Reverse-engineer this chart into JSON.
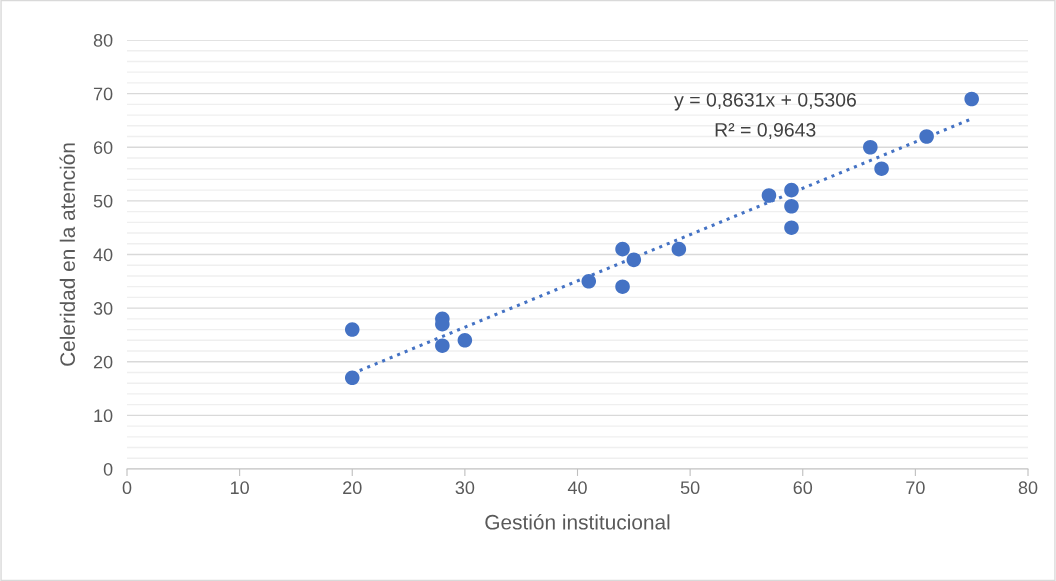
{
  "chart_data": {
    "type": "scatter",
    "xlabel": "Gestión institucional",
    "ylabel": "Celeridad en la atención",
    "series": [
      {
        "color": "#4472c4",
        "marker": "circle",
        "x": [
          20,
          20,
          28,
          28,
          28,
          30,
          41,
          44,
          44,
          45,
          49,
          57,
          59,
          59,
          59,
          66,
          67,
          71,
          75
        ],
        "values": [
          26,
          17,
          28,
          27,
          23,
          24,
          35,
          41,
          34,
          39,
          41,
          51,
          52,
          49,
          45,
          60,
          56,
          62,
          69
        ]
      },
      {
        "type": "line",
        "color": "#4472c4",
        "marker": "none",
        "line_style": "dotted",
        "x": [
          20,
          75
        ],
        "values": [
          17.8,
          65.3
        ]
      }
    ],
    "annotations": [
      "y = 0,8631x + 0,5306",
      "R² = 0,9643"
    ],
    "xlim": [
      0,
      80
    ],
    "xticks": [
      0,
      10,
      20,
      30,
      40,
      50,
      60,
      70,
      80
    ],
    "ylim": [
      0,
      80
    ],
    "yticks": [
      0,
      {
        "value": 2,
        "label": null
      },
      {
        "value": 4,
        "label": null
      },
      {
        "value": 6,
        "label": null
      },
      {
        "value": 8,
        "label": null
      },
      10,
      {
        "value": 12,
        "label": null
      },
      {
        "value": 14,
        "label": null
      },
      {
        "value": 16,
        "label": null
      },
      {
        "value": 18,
        "label": null
      },
      20,
      {
        "value": 22,
        "label": null
      },
      {
        "value": 24,
        "label": null
      },
      {
        "value": 26,
        "label": null
      },
      {
        "value": 28,
        "label": null
      },
      30,
      {
        "value": 32,
        "label": null
      },
      {
        "value": 34,
        "label": null
      },
      {
        "value": 36,
        "label": null
      },
      {
        "value": 38,
        "label": null
      },
      40,
      {
        "value": 42,
        "label": null
      },
      {
        "value": 44,
        "label": null
      },
      {
        "value": 46,
        "label": null
      },
      {
        "value": 48,
        "label": null
      },
      50,
      {
        "value": 52,
        "label": null
      },
      {
        "value": 54,
        "label": null
      },
      {
        "value": 56,
        "label": null
      },
      {
        "value": 58,
        "label": null
      },
      60,
      {
        "value": 62,
        "label": null
      },
      {
        "value": 64,
        "label": null
      },
      {
        "value": 66,
        "label": null
      },
      {
        "value": 68,
        "label": null
      },
      70,
      {
        "value": 72,
        "label": null
      },
      {
        "value": 74,
        "label": null
      },
      {
        "value": 76,
        "label": null
      },
      {
        "value": 78,
        "label": null
      },
      80
    ],
    "grid": "y",
    "legend": false
  }
}
